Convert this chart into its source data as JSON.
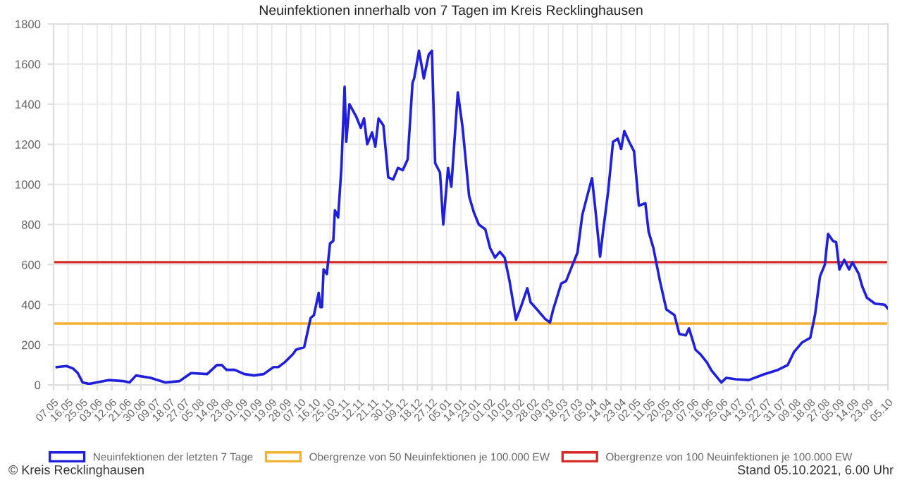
{
  "chart_data": {
    "type": "line",
    "title": "Neuinfektionen innerhalb von 7 Tagen im Kreis Recklinghausen",
    "annotations": [
      "© Kreis Recklinghausen",
      "Stand 05.10.2021, 6.00 Uhr"
    ],
    "legend": "bottom",
    "grid": true,
    "marker": "none",
    "line_style": "solid",
    "xlim": [
      "2020-05-07",
      "2021-10-05"
    ],
    "ylim": [
      0,
      1800
    ],
    "yticks": [
      0,
      200,
      400,
      600,
      800,
      1000,
      1200,
      1400,
      1600,
      1800
    ],
    "xticks": [
      {
        "value": "2020-05-07",
        "label": "07.05"
      },
      {
        "value": "2020-05-16",
        "label": "16.05"
      },
      {
        "value": "2020-05-25",
        "label": "25.05"
      },
      {
        "value": "2020-06-03",
        "label": "03.06"
      },
      {
        "value": "2020-06-12",
        "label": "12.06"
      },
      {
        "value": "2020-06-21",
        "label": "21.06"
      },
      {
        "value": "2020-06-30",
        "label": "30.06"
      },
      {
        "value": "2020-07-09",
        "label": "09.07"
      },
      {
        "value": "2020-07-18",
        "label": "18.07"
      },
      {
        "value": "2020-07-27",
        "label": "27.07"
      },
      {
        "value": "2020-08-05",
        "label": "05.08"
      },
      {
        "value": "2020-08-14",
        "label": "14.08"
      },
      {
        "value": "2020-08-23",
        "label": "23.08"
      },
      {
        "value": "2020-09-01",
        "label": "01.09"
      },
      {
        "value": "2020-09-10",
        "label": "10.09"
      },
      {
        "value": "2020-09-19",
        "label": "19.09"
      },
      {
        "value": "2020-09-28",
        "label": "28.09"
      },
      {
        "value": "2020-10-07",
        "label": "07.10"
      },
      {
        "value": "2020-10-16",
        "label": "16.10"
      },
      {
        "value": "2020-10-25",
        "label": "25.10"
      },
      {
        "value": "2020-11-03",
        "label": "03.11"
      },
      {
        "value": "2020-11-12",
        "label": "12.11"
      },
      {
        "value": "2020-11-21",
        "label": "21.11"
      },
      {
        "value": "2020-11-30",
        "label": "30.11"
      },
      {
        "value": "2020-12-09",
        "label": "09.12"
      },
      {
        "value": "2020-12-18",
        "label": "18.12"
      },
      {
        "value": "2020-12-27",
        "label": "27.12"
      },
      {
        "value": "2021-01-05",
        "label": "05.01"
      },
      {
        "value": "2021-01-14",
        "label": "14.01"
      },
      {
        "value": "2021-01-23",
        "label": "23.01"
      },
      {
        "value": "2021-02-01",
        "label": "01.02"
      },
      {
        "value": "2021-02-10",
        "label": "10.02"
      },
      {
        "value": "2021-02-19",
        "label": "19.02"
      },
      {
        "value": "2021-02-28",
        "label": "28.02"
      },
      {
        "value": "2021-03-09",
        "label": "09.03"
      },
      {
        "value": "2021-03-18",
        "label": "18.03"
      },
      {
        "value": "2021-03-27",
        "label": "27.03"
      },
      {
        "value": "2021-04-05",
        "label": "05.04"
      },
      {
        "value": "2021-04-14",
        "label": "14.04"
      },
      {
        "value": "2021-04-23",
        "label": "23.04"
      },
      {
        "value": "2021-05-02",
        "label": "02.05"
      },
      {
        "value": "2021-05-11",
        "label": "11.05"
      },
      {
        "value": "2021-05-20",
        "label": "20.05"
      },
      {
        "value": "2021-05-29",
        "label": "29.05"
      },
      {
        "value": "2021-06-07",
        "label": "07.06"
      },
      {
        "value": "2021-06-16",
        "label": "16.06"
      },
      {
        "value": "2021-06-25",
        "label": "25.06"
      },
      {
        "value": "2021-07-04",
        "label": "04.07"
      },
      {
        "value": "2021-07-13",
        "label": "13.07"
      },
      {
        "value": "2021-07-22",
        "label": "22.07"
      },
      {
        "value": "2021-07-31",
        "label": "31.07"
      },
      {
        "value": "2021-08-09",
        "label": "09.08"
      },
      {
        "value": "2021-08-18",
        "label": "18.08"
      },
      {
        "value": "2021-08-27",
        "label": "27.08"
      },
      {
        "value": "2021-09-05",
        "label": "05.09"
      },
      {
        "value": "2021-09-14",
        "label": "14.09"
      },
      {
        "value": "2021-09-23",
        "label": "23.09"
      },
      {
        "value": "2021-10-05",
        "label": "05.10"
      }
    ],
    "x": [
      "2020-05-09",
      "2020-05-15",
      "2020-05-19",
      "2020-05-22",
      "2020-05-25",
      "2020-05-29",
      "2020-06-10",
      "2020-06-19",
      "2020-06-23",
      "2020-06-27",
      "2020-07-06",
      "2020-07-15",
      "2020-07-24",
      "2020-07-31",
      "2020-08-10",
      "2020-08-16",
      "2020-08-19",
      "2020-08-22",
      "2020-08-27",
      "2020-09-02",
      "2020-09-08",
      "2020-09-14",
      "2020-09-20",
      "2020-09-23",
      "2020-09-27",
      "2020-10-02",
      "2020-10-04",
      "2020-10-09",
      "2020-10-13",
      "2020-10-15",
      "2020-10-18",
      "2020-10-19",
      "2020-10-20",
      "2020-10-21",
      "2020-10-23",
      "2020-10-25",
      "2020-10-27",
      "2020-10-28",
      "2020-10-30",
      "2020-11-01",
      "2020-11-03",
      "2020-11-04",
      "2020-11-06",
      "2020-11-10",
      "2020-11-13",
      "2020-11-15",
      "2020-11-17",
      "2020-11-20",
      "2020-11-22",
      "2020-11-24",
      "2020-11-27",
      "2020-11-30",
      "2020-12-03",
      "2020-12-06",
      "2020-12-09",
      "2020-12-12",
      "2020-12-15",
      "2020-12-16",
      "2020-12-19",
      "2020-12-22",
      "2020-12-25",
      "2020-12-27",
      "2020-12-29",
      "2021-01-01",
      "2021-01-03",
      "2021-01-06",
      "2021-01-08",
      "2021-01-12",
      "2021-01-15",
      "2021-01-19",
      "2021-01-22",
      "2021-01-25",
      "2021-01-29",
      "2021-02-01",
      "2021-02-04",
      "2021-02-07",
      "2021-02-10",
      "2021-02-13",
      "2021-02-17",
      "2021-02-20",
      "2021-02-24",
      "2021-02-26",
      "2021-03-02",
      "2021-03-07",
      "2021-03-10",
      "2021-03-12",
      "2021-03-17",
      "2021-03-20",
      "2021-03-24",
      "2021-03-27",
      "2021-03-30",
      "2021-04-02",
      "2021-04-05",
      "2021-04-07",
      "2021-04-10",
      "2021-04-12",
      "2021-04-15",
      "2021-04-18",
      "2021-04-21",
      "2021-04-23",
      "2021-04-25",
      "2021-04-28",
      "2021-05-01",
      "2021-05-04",
      "2021-05-08",
      "2021-05-10",
      "2021-05-13",
      "2021-05-17",
      "2021-05-21",
      "2021-05-26",
      "2021-05-29",
      "2021-06-02",
      "2021-06-04",
      "2021-06-08",
      "2021-06-11",
      "2021-06-15",
      "2021-06-18",
      "2021-06-24",
      "2021-06-27",
      "2021-07-03",
      "2021-07-11",
      "2021-07-20",
      "2021-07-29",
      "2021-08-04",
      "2021-08-08",
      "2021-08-13",
      "2021-08-18",
      "2021-08-21",
      "2021-08-24",
      "2021-08-27",
      "2021-08-29",
      "2021-09-01",
      "2021-09-03",
      "2021-09-05",
      "2021-09-08",
      "2021-09-11",
      "2021-09-13",
      "2021-09-17",
      "2021-09-19",
      "2021-09-22",
      "2021-09-27",
      "2021-10-03",
      "2021-10-05"
    ],
    "series": [
      {
        "name": "Neuinfektionen der letzten 7 Tage",
        "color": "#1f1fdc",
        "values": [
          89,
          94,
          82,
          59,
          12,
          5,
          24,
          19,
          12,
          47,
          35,
          12,
          19,
          59,
          54,
          99,
          99,
          75,
          75,
          54,
          47,
          54,
          89,
          89,
          113,
          153,
          176,
          188,
          334,
          348,
          459,
          388,
          388,
          576,
          553,
          706,
          718,
          871,
          835,
          1082,
          1487,
          1212,
          1400,
          1341,
          1282,
          1329,
          1200,
          1259,
          1188,
          1329,
          1294,
          1035,
          1024,
          1082,
          1071,
          1125,
          1506,
          1529,
          1666,
          1529,
          1647,
          1666,
          1106,
          1059,
          800,
          1082,
          988,
          1459,
          1282,
          941,
          859,
          800,
          776,
          682,
          635,
          664,
          635,
          518,
          325,
          388,
          482,
          412,
          376,
          329,
          311,
          376,
          506,
          518,
          600,
          659,
          847,
          941,
          1031,
          882,
          640,
          776,
          965,
          1212,
          1228,
          1176,
          1266,
          1212,
          1165,
          894,
          906,
          765,
          682,
          518,
          376,
          348,
          254,
          247,
          282,
          176,
          153,
          113,
          71,
          12,
          35,
          28,
          24,
          52,
          75,
          99,
          165,
          212,
          235,
          353,
          541,
          600,
          753,
          718,
          711,
          576,
          624,
          576,
          612,
          553,
          494,
          435,
          405,
          400,
          381
        ]
      }
    ],
    "ref_lines": [
      {
        "axis": "y",
        "value": 306,
        "label": "Obergrenze von 50 Neuinfektionen je 100.000 EW",
        "color": "#f2b233",
        "line_style": "solid"
      },
      {
        "axis": "y",
        "value": 612,
        "label": "Obergrenze von 100 Neuinfektionen je 100.000 EW",
        "color": "#d42a2a",
        "line_style": "solid"
      }
    ]
  }
}
